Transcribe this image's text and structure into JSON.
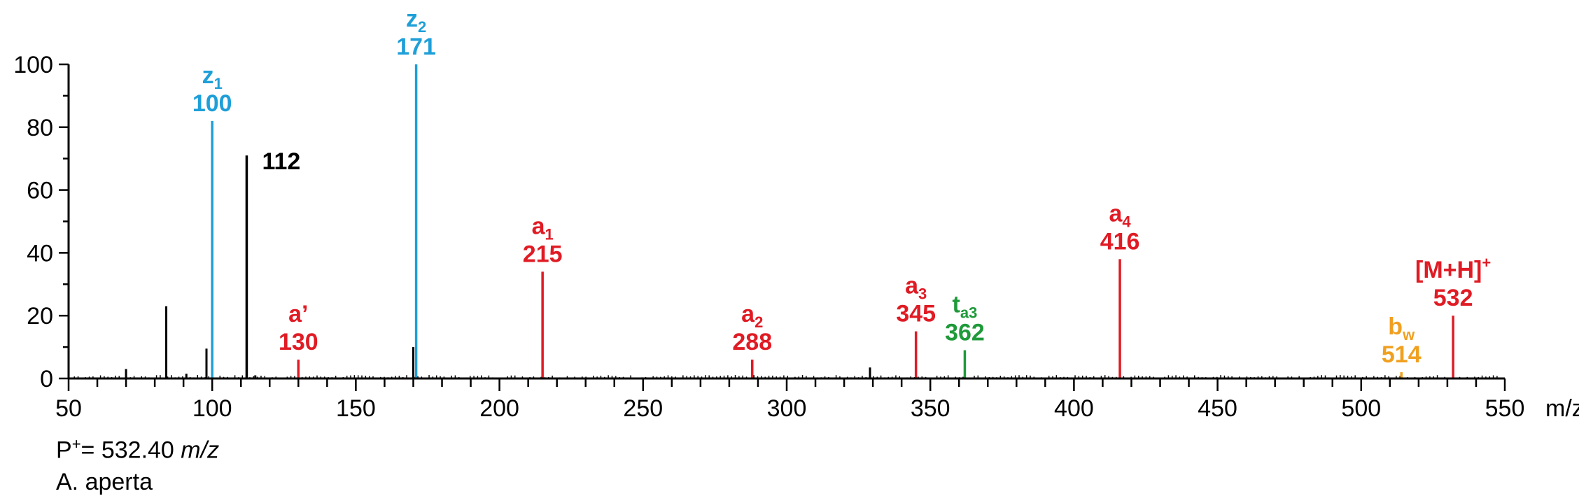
{
  "chart_data": {
    "type": "bar",
    "title": "",
    "xlabel": "m/z",
    "ylabel": "",
    "xlim": [
      50,
      550
    ],
    "ylim": [
      0,
      100
    ],
    "x_ticks": [
      "50",
      "100",
      "150",
      "200",
      "250",
      "300",
      "350",
      "400",
      "450",
      "500",
      "550"
    ],
    "y_ticks": [
      "0",
      "20",
      "40",
      "60",
      "80",
      "100"
    ],
    "x_unit": "m/z",
    "colors": {
      "black": "#000000",
      "z": "#1e9fd8",
      "a": "#e01b24",
      "t": "#1f9a3a",
      "b": "#f0a020"
    },
    "peaks": [
      {
        "mz": 100,
        "intensity": 82,
        "color": "z",
        "ion": "z",
        "sub": "1",
        "mass": "100"
      },
      {
        "mz": 112,
        "intensity": 71,
        "color": "black",
        "ion": "",
        "sub": "",
        "mass": "112"
      },
      {
        "mz": 130,
        "intensity": 6,
        "color": "a",
        "ion": "a’",
        "sub": "",
        "mass": "130"
      },
      {
        "mz": 171,
        "intensity": 100,
        "color": "z",
        "ion": "z",
        "sub": "2",
        "mass": "171"
      },
      {
        "mz": 215,
        "intensity": 34,
        "color": "a",
        "ion": "a",
        "sub": "1",
        "mass": "215"
      },
      {
        "mz": 288,
        "intensity": 6,
        "color": "a",
        "ion": "a",
        "sub": "2",
        "mass": "288"
      },
      {
        "mz": 345,
        "intensity": 15,
        "color": "a",
        "ion": "a",
        "sub": "3",
        "mass": "345"
      },
      {
        "mz": 362,
        "intensity": 9,
        "color": "t",
        "ion": "t",
        "sub": "a3",
        "mass": "362"
      },
      {
        "mz": 416,
        "intensity": 38,
        "color": "a",
        "ion": "a",
        "sub": "4",
        "mass": "416"
      },
      {
        "mz": 514,
        "intensity": 2,
        "color": "b",
        "ion": "b",
        "sub": "w",
        "mass": "514"
      },
      {
        "mz": 532,
        "intensity": 20,
        "color": "a",
        "ion": "[M+H]",
        "sup": "+",
        "sub": "",
        "mass": "532"
      }
    ],
    "unlabeled_peaks": [
      {
        "mz": 70,
        "intensity": 3
      },
      {
        "mz": 84,
        "intensity": 23
      },
      {
        "mz": 91,
        "intensity": 1.5
      },
      {
        "mz": 98,
        "intensity": 9.5
      },
      {
        "mz": 115,
        "intensity": 1
      },
      {
        "mz": 170,
        "intensity": 10
      },
      {
        "mz": 329,
        "intensity": 3.5
      }
    ]
  },
  "footer": {
    "precursor_prefix": "P",
    "precursor_sup": "+",
    "precursor_value": "= 532.40 ",
    "precursor_unit": "m/z",
    "species": "A. aperta"
  }
}
